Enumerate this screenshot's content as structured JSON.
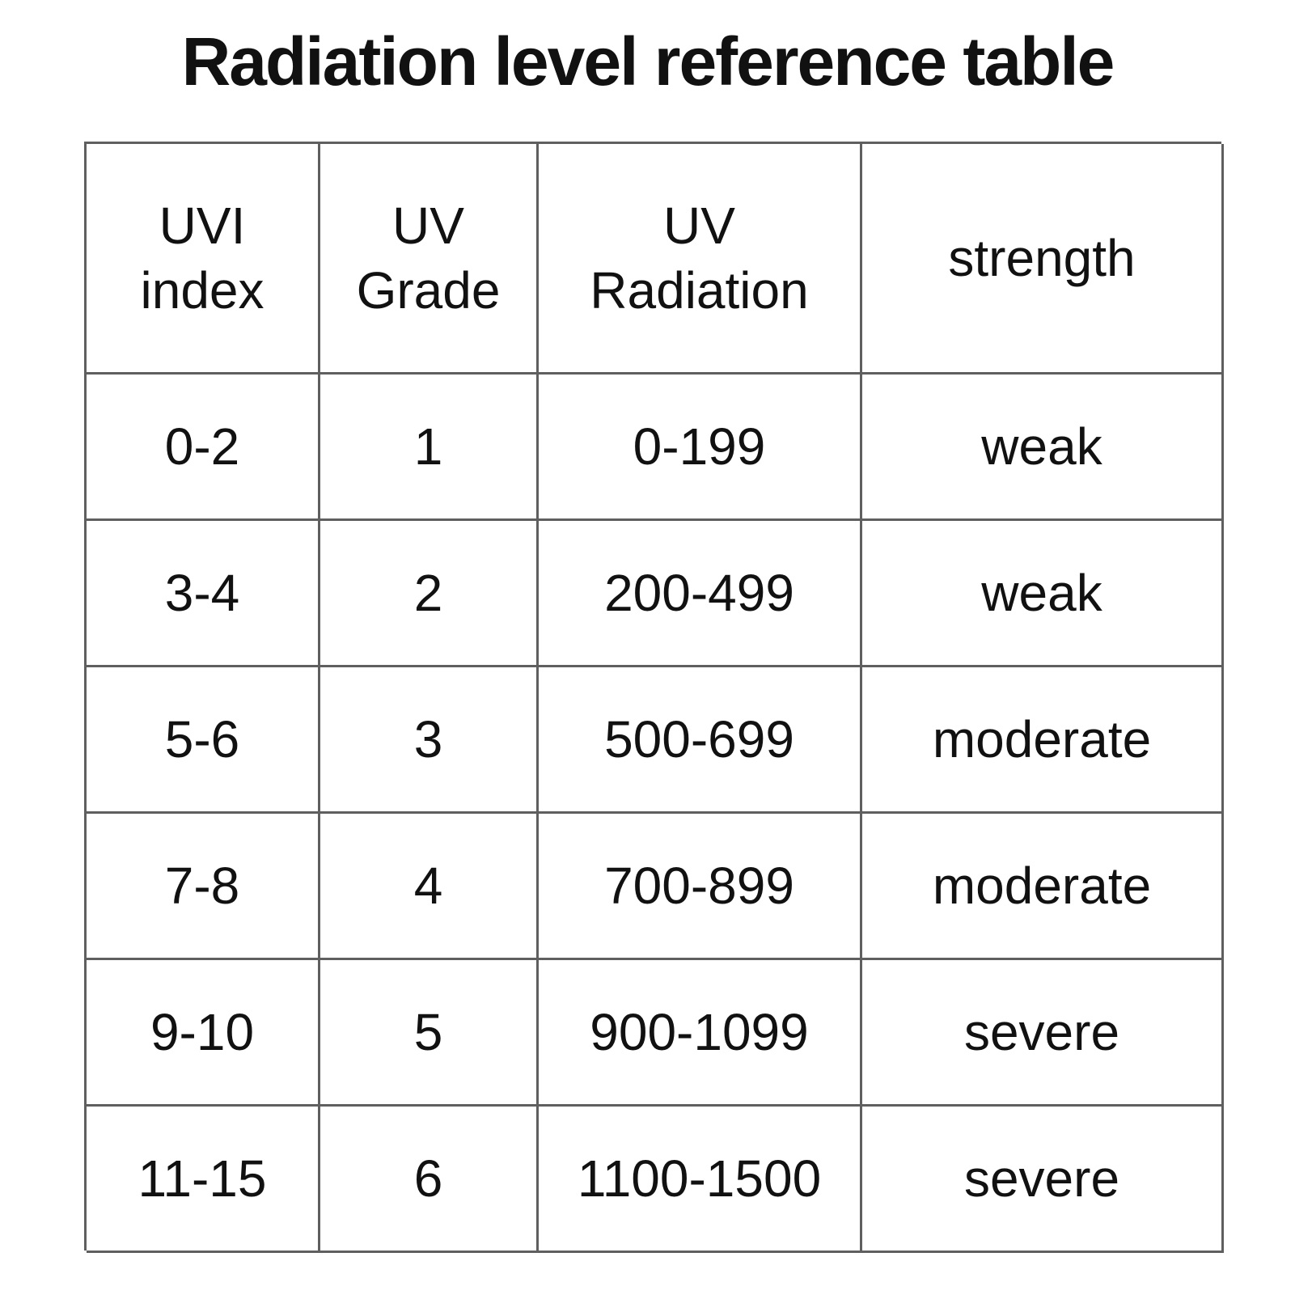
{
  "page": {
    "title": "Radiation level reference table"
  },
  "table": {
    "headers": [
      "UVI\nindex",
      "UV\nGrade",
      "UV\nRadiation",
      "strength"
    ],
    "rows": [
      [
        "0-2",
        "1",
        "0-199",
        "weak"
      ],
      [
        "3-4",
        "2",
        "200-499",
        "weak"
      ],
      [
        "5-6",
        "3",
        "500-699",
        "moderate"
      ],
      [
        "7-8",
        "4",
        "700-899",
        "moderate"
      ],
      [
        "9-10",
        "5",
        "900-1099",
        "severe"
      ],
      [
        "11-15",
        "6",
        "1100-1500",
        "severe"
      ]
    ]
  },
  "chart_data": {
    "type": "table",
    "title": "Radiation level reference table",
    "columns": [
      "UVI index",
      "UV Grade",
      "UV Radiation",
      "strength"
    ],
    "rows": [
      {
        "uvi_index": "0-2",
        "uv_grade": 1,
        "uv_radiation": "0-199",
        "strength": "weak"
      },
      {
        "uvi_index": "3-4",
        "uv_grade": 2,
        "uv_radiation": "200-499",
        "strength": "weak"
      },
      {
        "uvi_index": "5-6",
        "uv_grade": 3,
        "uv_radiation": "500-699",
        "strength": "moderate"
      },
      {
        "uvi_index": "7-8",
        "uv_grade": 4,
        "uv_radiation": "700-899",
        "strength": "moderate"
      },
      {
        "uvi_index": "9-10",
        "uv_grade": 5,
        "uv_radiation": "900-1099",
        "strength": "severe"
      },
      {
        "uvi_index": "11-15",
        "uv_grade": 6,
        "uv_radiation": "1100-1500",
        "strength": "severe"
      }
    ]
  },
  "colors": {
    "background": "#ffffff",
    "text": "#111111",
    "border": "#5f5f5f"
  }
}
